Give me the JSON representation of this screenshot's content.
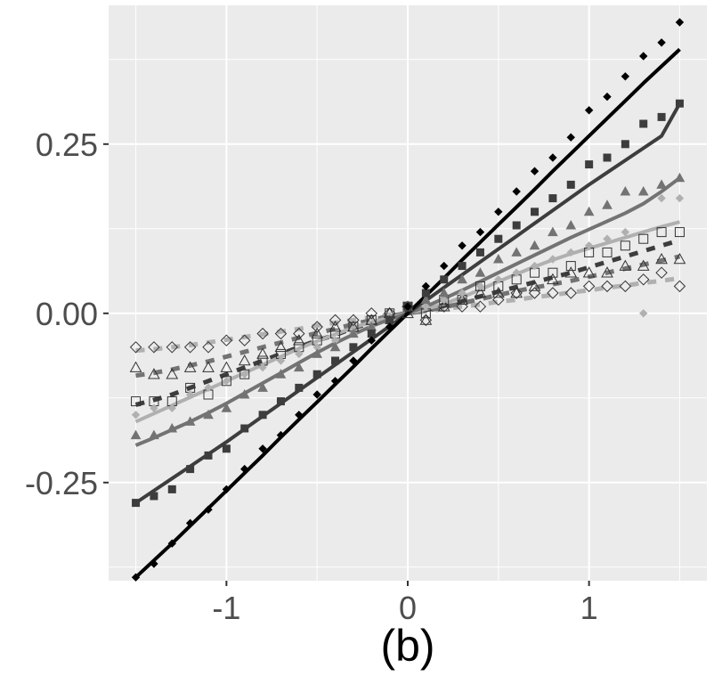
{
  "chart_data": {
    "type": "line",
    "title": "",
    "xlabel": "(b)",
    "ylabel": "",
    "xlim": [
      -1.65,
      1.65
    ],
    "ylim": [
      -0.395,
      0.455
    ],
    "x_ticks": [
      -1,
      0,
      1
    ],
    "x_tick_labels": [
      "-1",
      "0",
      "1"
    ],
    "y_ticks": [
      -0.25,
      0.0,
      0.25
    ],
    "y_tick_labels": [
      "-0.25",
      "0.00",
      "0.25"
    ],
    "grid": true,
    "legend": "none",
    "x": [
      -1.5,
      -1.4,
      -1.3,
      -1.2,
      -1.1,
      -1.0,
      -0.9,
      -0.8,
      -0.7,
      -0.6,
      -0.5,
      -0.4,
      -0.3,
      -0.2,
      -0.1,
      0.0,
      0.1,
      0.2,
      0.3,
      0.4,
      0.5,
      0.6,
      0.7,
      0.8,
      0.9,
      1.0,
      1.1,
      1.2,
      1.3,
      1.4,
      1.5
    ],
    "series": [
      {
        "style": "solid",
        "color": "#000000",
        "marker": "filled-diamond",
        "values": [
          -0.39,
          -0.37,
          -0.34,
          -0.31,
          -0.29,
          -0.26,
          -0.23,
          -0.2,
          -0.18,
          -0.15,
          -0.12,
          -0.1,
          -0.07,
          -0.04,
          -0.02,
          0.01,
          0.04,
          0.07,
          0.1,
          0.12,
          0.15,
          0.18,
          0.21,
          0.23,
          0.26,
          0.3,
          0.32,
          0.35,
          0.38,
          0.4,
          0.43
        ],
        "line": [
          -0.39,
          -0.365,
          -0.34,
          -0.314,
          -0.288,
          -0.262,
          -0.236,
          -0.21,
          -0.183,
          -0.157,
          -0.131,
          -0.105,
          -0.079,
          -0.052,
          -0.026,
          0.0,
          0.026,
          0.052,
          0.079,
          0.105,
          0.131,
          0.157,
          0.183,
          0.21,
          0.236,
          0.262,
          0.288,
          0.314,
          0.34,
          0.365,
          0.39
        ]
      },
      {
        "style": "solid",
        "color": "#3d3d3d",
        "marker": "filled-square",
        "values": [
          -0.28,
          -0.27,
          -0.26,
          -0.23,
          -0.21,
          -0.2,
          -0.17,
          -0.15,
          -0.13,
          -0.11,
          -0.09,
          -0.07,
          -0.05,
          -0.03,
          -0.01,
          0.01,
          0.03,
          0.05,
          0.07,
          0.09,
          0.11,
          0.13,
          0.15,
          0.17,
          0.19,
          0.22,
          0.23,
          0.25,
          0.28,
          0.29,
          0.31
        ],
        "line": [
          -0.28,
          -0.262,
          -0.244,
          -0.226,
          -0.208,
          -0.19,
          -0.171,
          -0.152,
          -0.133,
          -0.114,
          -0.095,
          -0.076,
          -0.057,
          -0.038,
          -0.019,
          0.0,
          0.019,
          0.038,
          0.057,
          0.076,
          0.095,
          0.114,
          0.133,
          0.152,
          0.171,
          0.19,
          0.208,
          0.226,
          0.244,
          0.262,
          0.31
        ]
      },
      {
        "style": "solid",
        "color": "#737373",
        "marker": "filled-triangle",
        "values": [
          -0.18,
          -0.18,
          -0.17,
          -0.16,
          -0.15,
          -0.14,
          -0.12,
          -0.11,
          -0.09,
          -0.08,
          -0.06,
          -0.05,
          -0.03,
          -0.02,
          -0.01,
          0.01,
          0.02,
          0.03,
          0.05,
          0.06,
          0.08,
          0.09,
          0.1,
          0.12,
          0.13,
          0.15,
          0.16,
          0.18,
          0.18,
          0.19,
          0.2
        ],
        "line": [
          -0.195,
          -0.184,
          -0.172,
          -0.16,
          -0.147,
          -0.133,
          -0.118,
          -0.103,
          -0.088,
          -0.073,
          -0.058,
          -0.044,
          -0.031,
          -0.019,
          -0.009,
          0.0,
          0.01,
          0.022,
          0.034,
          0.047,
          0.06,
          0.073,
          0.086,
          0.099,
          0.112,
          0.124,
          0.136,
          0.148,
          0.162,
          0.18,
          0.2
        ]
      },
      {
        "style": "solid",
        "color": "#b0b0b0",
        "marker": "filled-diamond",
        "values": [
          -0.15,
          -0.14,
          -0.14,
          -0.12,
          -0.11,
          -0.1,
          -0.09,
          -0.08,
          -0.07,
          -0.06,
          -0.05,
          -0.04,
          -0.03,
          -0.02,
          -0.01,
          0.01,
          0.01,
          0.02,
          0.03,
          0.04,
          0.05,
          0.06,
          0.07,
          0.08,
          0.09,
          0.1,
          0.11,
          0.12,
          0.0,
          0.17,
          0.17
        ],
        "line": [
          -0.16,
          -0.148,
          -0.136,
          -0.124,
          -0.112,
          -0.1,
          -0.088,
          -0.076,
          -0.064,
          -0.052,
          -0.041,
          -0.031,
          -0.021,
          -0.013,
          -0.006,
          0.0,
          0.006,
          0.014,
          0.024,
          0.035,
          0.047,
          0.058,
          0.069,
          0.079,
          0.088,
          0.096,
          0.104,
          0.112,
          0.12,
          0.128,
          0.135
        ]
      },
      {
        "style": "dashed",
        "color": "#3d3d3d",
        "marker": "open-square",
        "values": [
          -0.13,
          -0.13,
          -0.13,
          -0.11,
          -0.12,
          -0.1,
          -0.09,
          -0.07,
          -0.06,
          -0.05,
          -0.04,
          -0.03,
          -0.02,
          -0.01,
          0.0,
          0.01,
          0.0,
          0.02,
          0.02,
          0.04,
          0.04,
          0.05,
          0.06,
          0.06,
          0.07,
          0.09,
          0.09,
          0.1,
          0.11,
          0.12,
          0.12
        ],
        "line": [
          -0.135,
          -0.128,
          -0.12,
          -0.11,
          -0.1,
          -0.09,
          -0.08,
          -0.07,
          -0.06,
          -0.05,
          -0.04,
          -0.032,
          -0.022,
          -0.014,
          -0.006,
          0.0,
          0.005,
          0.011,
          0.018,
          0.025,
          0.032,
          0.039,
          0.046,
          0.053,
          0.06,
          0.068,
          0.076,
          0.084,
          0.092,
          0.1,
          0.108
        ]
      },
      {
        "style": "dashed",
        "color": "#737373",
        "marker": "open-triangle",
        "values": [
          -0.08,
          -0.09,
          -0.09,
          -0.08,
          -0.08,
          -0.08,
          -0.07,
          -0.06,
          -0.05,
          -0.04,
          -0.03,
          -0.02,
          -0.02,
          -0.01,
          0.0,
          0.0,
          -0.01,
          0.01,
          0.02,
          0.03,
          0.03,
          0.03,
          0.04,
          0.05,
          0.06,
          0.06,
          0.06,
          0.07,
          0.07,
          0.08,
          0.08
        ],
        "line": [
          -0.092,
          -0.088,
          -0.083,
          -0.077,
          -0.071,
          -0.064,
          -0.057,
          -0.05,
          -0.043,
          -0.036,
          -0.029,
          -0.023,
          -0.016,
          -0.01,
          -0.004,
          0.0,
          0.004,
          0.009,
          0.015,
          0.021,
          0.027,
          0.033,
          0.038,
          0.043,
          0.048,
          0.054,
          0.06,
          0.066,
          0.072,
          0.078,
          0.084
        ]
      },
      {
        "style": "dashed",
        "color": "#b0b0b0",
        "marker": "open-diamond",
        "values": [
          -0.05,
          -0.05,
          -0.05,
          -0.05,
          -0.05,
          -0.04,
          -0.04,
          -0.03,
          -0.03,
          -0.03,
          -0.02,
          -0.01,
          -0.01,
          0.0,
          0.0,
          0.01,
          -0.01,
          0.01,
          0.01,
          0.01,
          0.02,
          0.03,
          0.03,
          0.03,
          0.03,
          0.04,
          0.04,
          0.04,
          0.05,
          0.06,
          0.04
        ],
        "line": [
          -0.055,
          -0.053,
          -0.05,
          -0.047,
          -0.043,
          -0.039,
          -0.035,
          -0.031,
          -0.027,
          -0.023,
          -0.018,
          -0.014,
          -0.01,
          -0.006,
          -0.002,
          0.0,
          0.003,
          0.006,
          0.01,
          0.013,
          0.017,
          0.02,
          0.024,
          0.027,
          0.031,
          0.034,
          0.038,
          0.041,
          0.045,
          0.048,
          0.052
        ]
      }
    ]
  },
  "colors": {
    "panel_background": "#ebebeb",
    "grid": "#ffffff",
    "tick_text": "#4d4d4d",
    "axis_title": "#000000"
  }
}
